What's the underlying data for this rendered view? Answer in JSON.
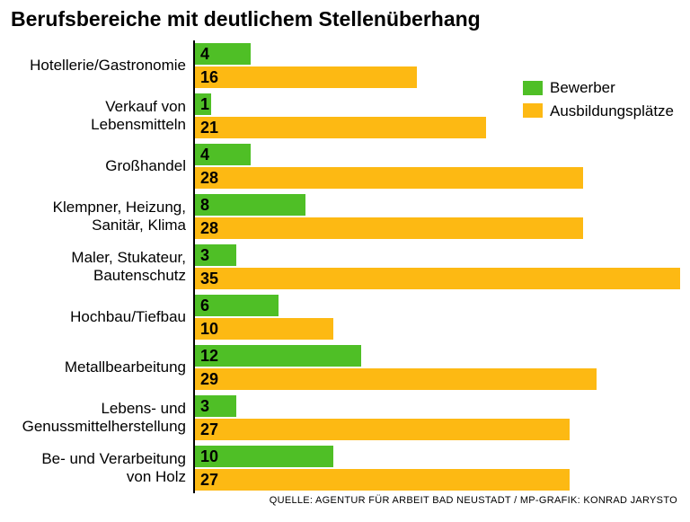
{
  "chart": {
    "type": "bar",
    "title": "Berufsbereiche mit deutlichem Stellenüberhang",
    "title_fontsize": 23,
    "label_fontsize": 17,
    "value_fontsize": 18,
    "max_value": 35,
    "bar_area_width": 540,
    "background_color": "#ffffff",
    "series": [
      {
        "key": "bewerber",
        "label": "Bewerber",
        "color": "#4fbf26"
      },
      {
        "key": "ausbildungsplaetze",
        "label": "Ausbildungsplätze",
        "color": "#fdb913"
      }
    ],
    "categories": [
      {
        "label": "Hotellerie/Gastronomie",
        "bewerber": 4,
        "ausbildungsplaetze": 16
      },
      {
        "label": "Verkauf von\nLebensmitteln",
        "bewerber": 1,
        "ausbildungsplaetze": 21
      },
      {
        "label": "Großhandel",
        "bewerber": 4,
        "ausbildungsplaetze": 28
      },
      {
        "label": "Klempner, Heizung,\nSanitär, Klima",
        "bewerber": 8,
        "ausbildungsplaetze": 28
      },
      {
        "label": "Maler, Stukateur,\nBautenschutz",
        "bewerber": 3,
        "ausbildungsplaetze": 35
      },
      {
        "label": "Hochbau/Tiefbau",
        "bewerber": 6,
        "ausbildungsplaetze": 10
      },
      {
        "label": "Metallbearbeitung",
        "bewerber": 12,
        "ausbildungsplaetze": 29
      },
      {
        "label": "Lebens- und\nGenussmittelherstellung",
        "bewerber": 3,
        "ausbildungsplaetze": 27
      },
      {
        "label": "Be- und Verarbeitung\nvon Holz",
        "bewerber": 10,
        "ausbildungsplaetze": 27
      }
    ],
    "legend": {
      "fontsize": 17
    },
    "source": "QUELLE: AGENTUR FÜR ARBEIT BAD NEUSTADT / MP-GRAFIK: KONRAD JARYSTO",
    "source_fontsize": 11
  }
}
